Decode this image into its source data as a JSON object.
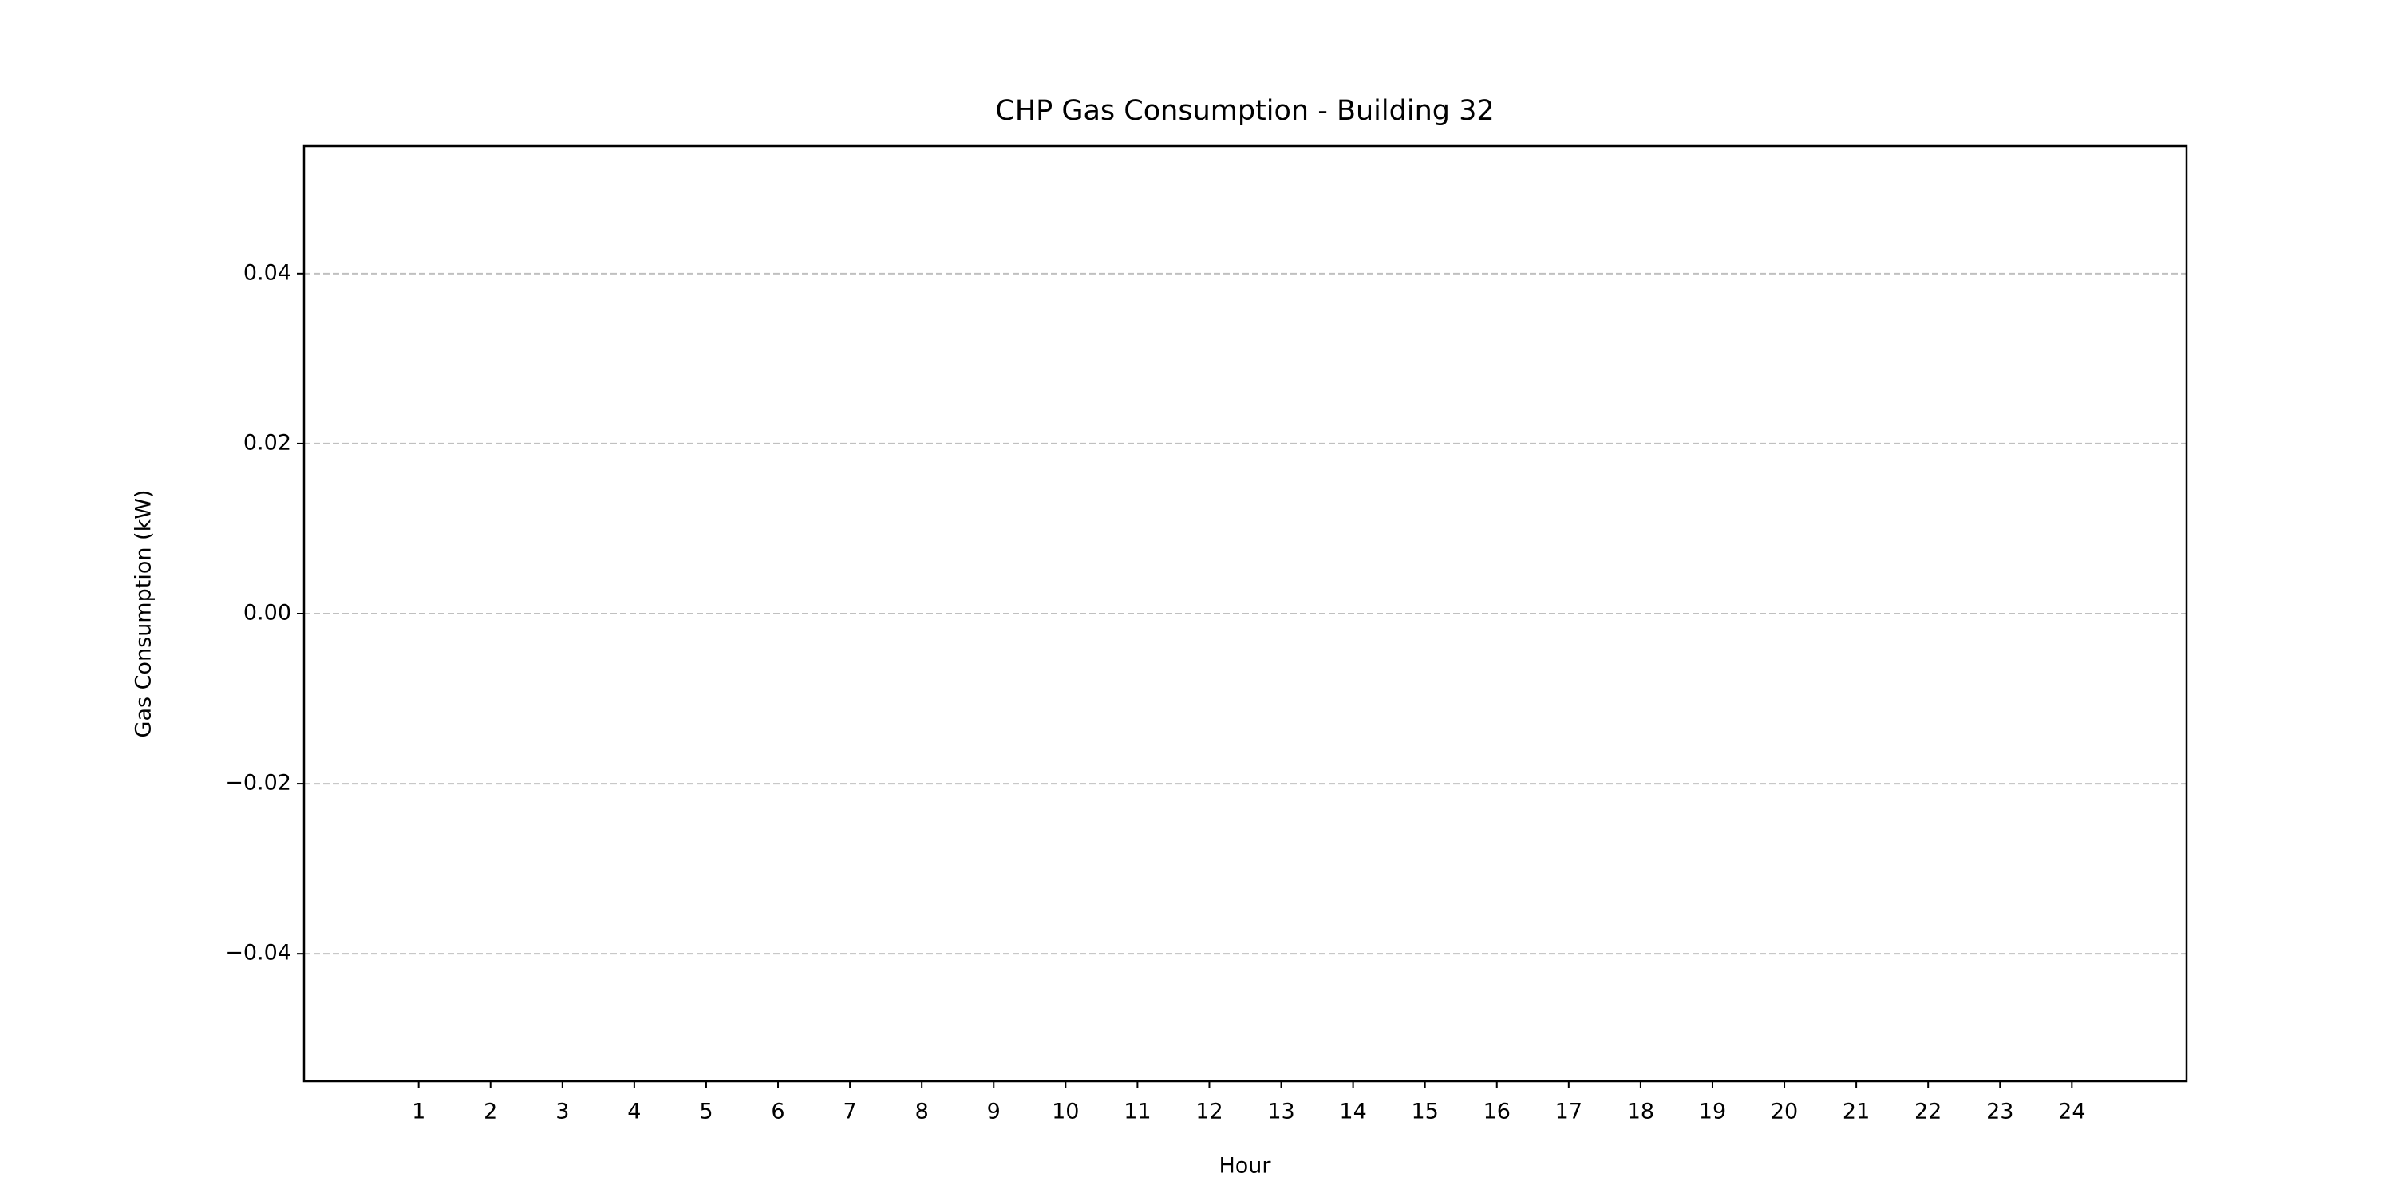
{
  "chart_data": {
    "type": "bar",
    "title": "CHP Gas Consumption - Building 32",
    "x_label": "Hour",
    "y_label": "Gas Consumption (kW)",
    "categories": [
      "1",
      "2",
      "3",
      "4",
      "5",
      "6",
      "7",
      "8",
      "9",
      "10",
      "11",
      "12",
      "13",
      "14",
      "15",
      "16",
      "17",
      "18",
      "19",
      "20",
      "21",
      "22",
      "23",
      "24"
    ],
    "values": [
      0,
      0,
      0,
      0,
      0,
      0,
      0,
      0,
      0,
      0,
      0,
      0,
      0,
      0,
      0,
      0,
      0,
      0,
      0,
      0,
      0,
      0,
      0,
      0
    ],
    "ylim": [
      -0.055,
      0.055
    ],
    "yticks": [
      {
        "value": -0.04,
        "label": "−0.04"
      },
      {
        "value": -0.02,
        "label": "−0.02"
      },
      {
        "value": 0,
        "label": "0.00"
      },
      0.02,
      0.04
    ],
    "grid": true
  }
}
